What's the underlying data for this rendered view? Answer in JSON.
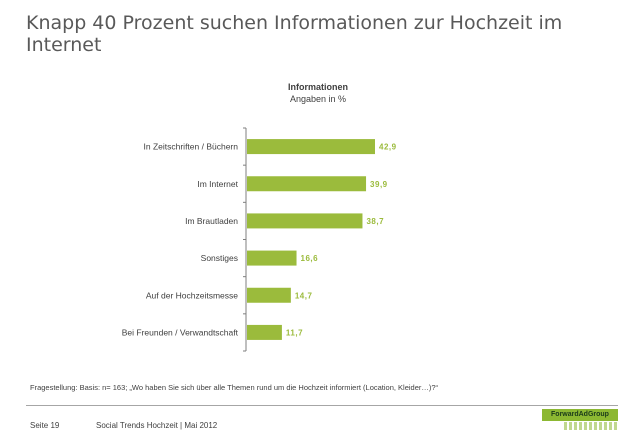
{
  "slide": {
    "title": "Knapp 40 Prozent suchen Informationen zur Hochzeit im Internet"
  },
  "chart_data": {
    "type": "bar",
    "orientation": "horizontal",
    "title": "Informationen",
    "subtitle": "Angaben in %",
    "categories": [
      "In Zeitschriften / Büchern",
      "Im Internet",
      "Im Brautladen",
      "Sonstiges",
      "Auf der Hochzeitsmesse",
      "Bei Freunden / Verwandtschaft"
    ],
    "values": [
      42.9,
      39.9,
      38.7,
      16.6,
      14.7,
      11.7
    ],
    "value_labels": [
      "42,9",
      "39,9",
      "38,7",
      "16,6",
      "14,7",
      "11,7"
    ],
    "xlim": [
      0,
      50
    ],
    "bar_color": "#9bbb3c",
    "grid": false,
    "legend": "none"
  },
  "footnote": "Fragestellung:   Basis: n= 163; „Wo haben Sie sich über alle Themen rund um die Hochzeit informiert (Location, Kleider…)?“",
  "footer": {
    "page": "Seite 19",
    "source": "Social Trends Hochzeit | Mai 2012",
    "logo_text": "ForwardAdGroup"
  },
  "colors": {
    "accent": "#9bbb3c",
    "text": "#595959"
  }
}
